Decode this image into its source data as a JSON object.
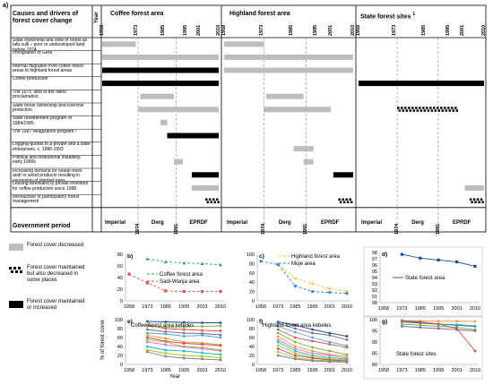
{
  "panel_a_label": "a)",
  "header": {
    "causes": "Causes and drivers of forest cover change",
    "year": "Year",
    "coffee": "Coffee forest area",
    "highland": "Highland forest area",
    "state": "State forest sites",
    "state_sup": "1"
  },
  "years": [
    "1958",
    "1973",
    "1985",
    "1995",
    "2001",
    "2010"
  ],
  "rows": [
    "State ownership and view of forest as lafa sulli – poor or undeveloped land before 1974",
    "Immigration to Gera",
    "Internal migration from coffee forest areas to highland forest areas",
    "Coffee production",
    "The 1975 'land to the tillers' proclamation",
    "State forest ownership and coercive protection",
    "State resettlement program of 1984/1985",
    "The 1987 villagization program ²",
    "Logging-quotas to a private and a state enterprises, c. 1986-1993",
    "Political and institutional instability, early 1990s",
    "Increasing demand for shade-trees and/ or wood products resulting in expansion of planted trees",
    "Leasing forestland to private investors for coffee production since 1998",
    "Introduction of participatory forest management"
  ],
  "government": {
    "label": "Government period",
    "periods": [
      "Imperial",
      "1974",
      "Derg",
      "1991",
      "EPRDF"
    ]
  },
  "legend": [
    {
      "label": "Forest cover decreased",
      "color": "#bdbdbd"
    },
    {
      "label": "Forest cover maintained but also decreased in some places",
      "color": "#000000"
    },
    {
      "label": "Forest cover maintained or increased",
      "color": "#000000"
    }
  ],
  "bars": [
    {
      "panel": 0,
      "row": 0,
      "from": 1958,
      "to": 1973,
      "style": "grey"
    },
    {
      "panel": 1,
      "row": 0,
      "from": 1958,
      "to": 1974,
      "style": "grey"
    },
    {
      "panel": 0,
      "row": 1,
      "from": 1958,
      "to": 2010,
      "style": "grey"
    },
    {
      "panel": 1,
      "row": 1,
      "from": 1958,
      "to": 2010,
      "style": "grey"
    },
    {
      "panel": 0,
      "row": 2,
      "from": 1958,
      "to": 2010,
      "style": "black"
    },
    {
      "panel": 1,
      "row": 2,
      "from": 1958,
      "to": 2010,
      "style": "grey"
    },
    {
      "panel": 0,
      "row": 3,
      "from": 1958,
      "to": 2010,
      "style": "black"
    },
    {
      "panel": 2,
      "row": 3,
      "from": 1958,
      "to": 2010,
      "style": "black"
    },
    {
      "panel": 0,
      "row": 4,
      "from": 1975,
      "to": 1990,
      "style": "grey"
    },
    {
      "panel": 1,
      "row": 4,
      "from": 1975,
      "to": 1990,
      "style": "grey"
    },
    {
      "panel": 0,
      "row": 5,
      "from": 1974,
      "to": 2010,
      "style": "grey"
    },
    {
      "panel": 1,
      "row": 5,
      "from": 1974,
      "to": 2001,
      "style": "grey"
    },
    {
      "panel": 2,
      "row": 5,
      "from": 1974,
      "to": 2000,
      "style": "dash"
    },
    {
      "panel": 0,
      "row": 6,
      "from": 1984,
      "to": 1987,
      "style": "grey"
    },
    {
      "panel": 0,
      "row": 7,
      "from": 1987,
      "to": 2010,
      "style": "black"
    },
    {
      "panel": 1,
      "row": 8,
      "from": 1986,
      "to": 1994,
      "style": "grey"
    },
    {
      "panel": 0,
      "row": 9,
      "from": 1990,
      "to": 1994,
      "style": "grey"
    },
    {
      "panel": 1,
      "row": 9,
      "from": 1990,
      "to": 1994,
      "style": "grey"
    },
    {
      "panel": 0,
      "row": 10,
      "from": 1998,
      "to": 2010,
      "style": "black"
    },
    {
      "panel": 1,
      "row": 10,
      "from": 2002,
      "to": 2010,
      "style": "black"
    },
    {
      "panel": 0,
      "row": 11,
      "from": 1998,
      "to": 2010,
      "style": "grey"
    },
    {
      "panel": 2,
      "row": 11,
      "from": 2002,
      "to": 2010,
      "style": "grey"
    },
    {
      "panel": 0,
      "row": 12,
      "from": 2004,
      "to": 2010,
      "style": "dash"
    },
    {
      "panel": 1,
      "row": 12,
      "from": 2004,
      "to": 2010,
      "style": "dash"
    },
    {
      "panel": 2,
      "row": 12,
      "from": 2004,
      "to": 2010,
      "style": "dash"
    }
  ],
  "chart_data": [
    {
      "panel": "b)",
      "type": "line",
      "x": [
        1958,
        1973,
        1985,
        1995,
        2001,
        2010
      ],
      "ylim": [
        0,
        80
      ],
      "yticks": [
        0,
        20,
        40,
        60,
        80
      ],
      "ylabel": "",
      "series": [
        {
          "name": "Coffee forest area",
          "color": "#2eaa5a",
          "dash": "3,2",
          "marker": "triangle",
          "values": [
            null,
            72,
            67,
            65,
            64,
            62
          ]
        },
        {
          "name": "Sadi-Wanja area",
          "color": "#d9534f",
          "dash": "3,2",
          "marker": "square",
          "values": [
            46,
            31,
            17,
            16,
            16,
            16
          ]
        }
      ]
    },
    {
      "panel": "c)",
      "type": "line",
      "x": [
        1958,
        1973,
        1985,
        1995,
        2001,
        2010
      ],
      "ylim": [
        0,
        100
      ],
      "yticks": [
        0,
        20,
        40,
        60,
        80,
        100
      ],
      "series": [
        {
          "name": "Highland forest area",
          "color": "#f2c22f",
          "dash": "3,2",
          "marker": "circle",
          "values": [
            null,
            79,
            48,
            37,
            26,
            20
          ]
        },
        {
          "name": "Muje area",
          "color": "#2f7fd0",
          "dash": "3,2",
          "marker": "diamond",
          "values": [
            85,
            78,
            32,
            20,
            18,
            16
          ]
        }
      ]
    },
    {
      "panel": "d)",
      "type": "line",
      "x": [
        1958,
        1973,
        1985,
        1995,
        2001,
        2010
      ],
      "ylim": [
        90,
        98
      ],
      "yticks": [
        90,
        91,
        92,
        93,
        94,
        95,
        96,
        97,
        98
      ],
      "series": [
        {
          "name": "State forest area",
          "color": "#1f4e8c",
          "dash": "",
          "marker": "square",
          "values": [
            null,
            97.7,
            97.1,
            96.8,
            96.5,
            95.8
          ]
        }
      ]
    },
    {
      "panel": "e)",
      "type": "line",
      "title": "Coffee forest area kebeles",
      "x": [
        1958,
        1973,
        1985,
        1995,
        2001,
        2010
      ],
      "ylim": [
        0,
        100
      ],
      "yticks": [
        0,
        20,
        40,
        60,
        80,
        100
      ],
      "ylabel": "% of forest cover",
      "xlabel": "Year",
      "series": [
        {
          "color": "#1f4e8c",
          "values": [
            null,
            96,
            95,
            94,
            93,
            93
          ]
        },
        {
          "color": "#d9534f",
          "values": [
            null,
            88,
            80,
            78,
            76,
            75
          ]
        },
        {
          "color": "#7bb241",
          "values": [
            null,
            85,
            83,
            84,
            85,
            86
          ]
        },
        {
          "color": "#8064a2",
          "values": [
            null,
            78,
            73,
            70,
            69,
            66
          ]
        },
        {
          "color": "#4bacc6",
          "values": [
            null,
            70,
            68,
            63,
            65,
            60
          ]
        },
        {
          "color": "#f79646",
          "values": [
            null,
            65,
            58,
            50,
            48,
            44
          ]
        },
        {
          "color": "#c0504d",
          "values": [
            null,
            60,
            52,
            47,
            45,
            42
          ]
        },
        {
          "color": "#9bbb59",
          "values": [
            null,
            55,
            50,
            40,
            38,
            32
          ]
        },
        {
          "color": "#e377c2",
          "values": [
            null,
            50,
            44,
            39,
            35,
            30
          ]
        },
        {
          "color": "#17becf",
          "values": [
            null,
            40,
            32,
            30,
            26,
            22
          ]
        },
        {
          "color": "#bcbd22",
          "values": [
            null,
            32,
            25,
            20,
            18,
            15
          ]
        },
        {
          "color": "#7f7f7f",
          "values": [
            null,
            28,
            18,
            14,
            12,
            10
          ]
        }
      ]
    },
    {
      "panel": "f)",
      "type": "line",
      "title": "Highland forest area kebeles",
      "x": [
        1958,
        1973,
        1985,
        1995,
        2001,
        2010
      ],
      "ylim": [
        0,
        100
      ],
      "yticks": [
        0,
        20,
        40,
        60,
        80,
        100
      ],
      "series": [
        {
          "color": "#1f4e8c",
          "values": [
            null,
            95,
            88,
            78,
            70,
            63
          ]
        },
        {
          "color": "#8064a2",
          "values": [
            null,
            92,
            80,
            70,
            65,
            55
          ]
        },
        {
          "color": "#4bacc6",
          "values": [
            null,
            85,
            72,
            60,
            50,
            42
          ]
        },
        {
          "color": "#d9534f",
          "values": [
            null,
            78,
            60,
            52,
            45,
            38
          ]
        },
        {
          "color": "#7bb241",
          "values": [
            null,
            70,
            50,
            38,
            30,
            22
          ]
        },
        {
          "color": "#f79646",
          "values": [
            null,
            62,
            40,
            30,
            22,
            18
          ]
        },
        {
          "color": "#e377c2",
          "values": [
            null,
            55,
            35,
            25,
            20,
            14
          ]
        },
        {
          "color": "#17becf",
          "values": [
            null,
            50,
            30,
            20,
            15,
            12
          ]
        },
        {
          "color": "#bcbd22",
          "values": [
            null,
            42,
            25,
            16,
            12,
            10
          ]
        },
        {
          "color": "#c0504d",
          "values": [
            null,
            35,
            20,
            14,
            10,
            8
          ]
        },
        {
          "color": "#9bbb59",
          "values": [
            null,
            28,
            15,
            10,
            8,
            6
          ]
        },
        {
          "color": "#7f7f7f",
          "values": [
            null,
            20,
            12,
            8,
            6,
            5
          ]
        }
      ]
    },
    {
      "panel": "g)",
      "type": "line",
      "title": "State forest sites",
      "x": [
        1958,
        1973,
        1985,
        1995,
        2001,
        2010
      ],
      "ylim": [
        80,
        100
      ],
      "yticks": [
        80,
        85,
        90,
        95,
        100
      ],
      "series": [
        {
          "color": "#f79646",
          "values": [
            null,
            99.5,
            99.4,
            99.3,
            99.3,
            99.2
          ]
        },
        {
          "color": "#1f4e8c",
          "values": [
            null,
            99,
            98.5,
            98,
            97.5,
            97
          ]
        },
        {
          "color": "#7bb241",
          "values": [
            null,
            98,
            97.5,
            97,
            96.5,
            95.5
          ]
        },
        {
          "color": "#8064a2",
          "values": [
            null,
            97,
            96.5,
            96,
            95.5,
            95
          ]
        },
        {
          "color": "#4bacc6",
          "values": [
            null,
            99.2,
            98.8,
            98,
            97.8,
            97.2
          ]
        },
        {
          "color": "#c0504d",
          "values": [
            null,
            99.6,
            99,
            98,
            96,
            86
          ]
        }
      ]
    }
  ]
}
